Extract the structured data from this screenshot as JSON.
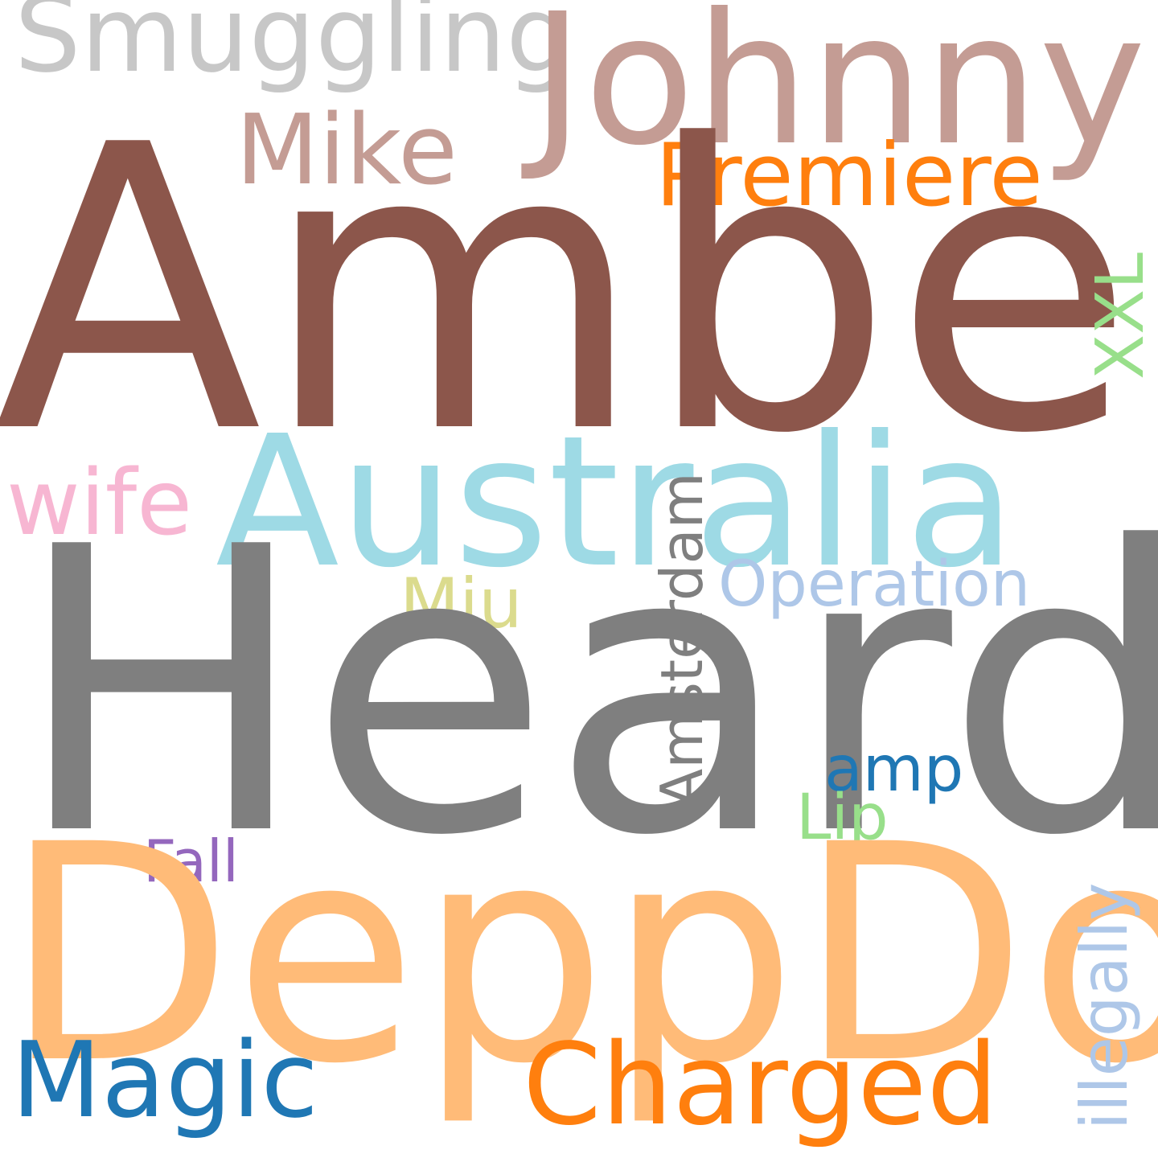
{
  "words": {
    "smuggling": {
      "text": "Smuggling",
      "color": "#c7c7c7"
    },
    "johnny": {
      "text": "Johnny",
      "color": "#c49c94"
    },
    "mike": {
      "text": "Mike",
      "color": "#c49c94"
    },
    "premiere": {
      "text": "Premiere",
      "color": "#ff7f0e"
    },
    "amber": {
      "text": "Amber",
      "color": "#8c564b"
    },
    "xxl": {
      "text": "XXL",
      "color": "#98df8a"
    },
    "wife": {
      "text": "wife",
      "color": "#f7b6d2"
    },
    "australia": {
      "text": "Australia",
      "color": "#9edae5"
    },
    "operation": {
      "text": "Operation",
      "color": "#aec7e8"
    },
    "miu": {
      "text": "Miu",
      "color": "#dbdb8d"
    },
    "amsterdam": {
      "text": "Amsterdam",
      "color": "#7f7f7f"
    },
    "heard": {
      "text": "Heard",
      "color": "#7f7f7f"
    },
    "amp": {
      "text": "amp",
      "color": "#1f77b4"
    },
    "lip": {
      "text": "Lip",
      "color": "#98df8a"
    },
    "fall": {
      "text": "Fall",
      "color": "#9467bd"
    },
    "depp_dog": {
      "text": "DeppDog",
      "color": "#ffbb78"
    },
    "illegally": {
      "text": "illegally",
      "color": "#aec7e8"
    },
    "magic": {
      "text": "Magic",
      "color": "#1f77b4"
    },
    "charged": {
      "text": "Charged",
      "color": "#ff7f0e"
    }
  }
}
